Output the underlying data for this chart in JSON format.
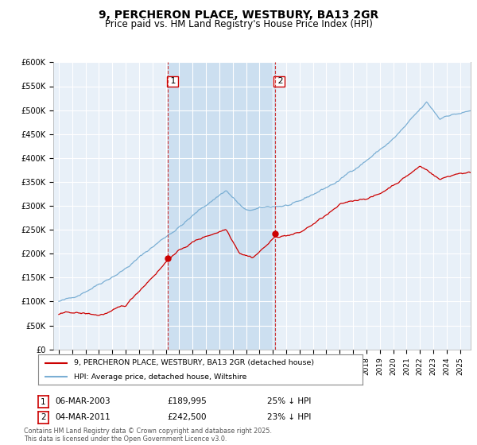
{
  "title": "9, PERCHERON PLACE, WESTBURY, BA13 2GR",
  "subtitle": "Price paid vs. HM Land Registry's House Price Index (HPI)",
  "ylabel_ticks": [
    "£0",
    "£50K",
    "£100K",
    "£150K",
    "£200K",
    "£250K",
    "£300K",
    "£350K",
    "£400K",
    "£450K",
    "£500K",
    "£550K",
    "£600K"
  ],
  "ylim": [
    0,
    600000
  ],
  "background_color": "#ffffff",
  "plot_bg_color": "#e8f0f8",
  "grid_color": "#ffffff",
  "highlight_color": "#ccdff0",
  "line_color_red": "#cc0000",
  "line_color_blue": "#7bafd4",
  "sale1_year": 2003.17,
  "sale1_price": 189995,
  "sale2_year": 2011.17,
  "sale2_price": 242500,
  "legend_red": "9, PERCHERON PLACE, WESTBURY, BA13 2GR (detached house)",
  "legend_blue": "HPI: Average price, detached house, Wiltshire",
  "footer": "Contains HM Land Registry data © Crown copyright and database right 2025.\nThis data is licensed under the Open Government Licence v3.0.",
  "table_row1": [
    "1",
    "06-MAR-2003",
    "£189,995",
    "25% ↓ HPI"
  ],
  "table_row2": [
    "2",
    "04-MAR-2011",
    "£242,500",
    "23% ↓ HPI"
  ]
}
